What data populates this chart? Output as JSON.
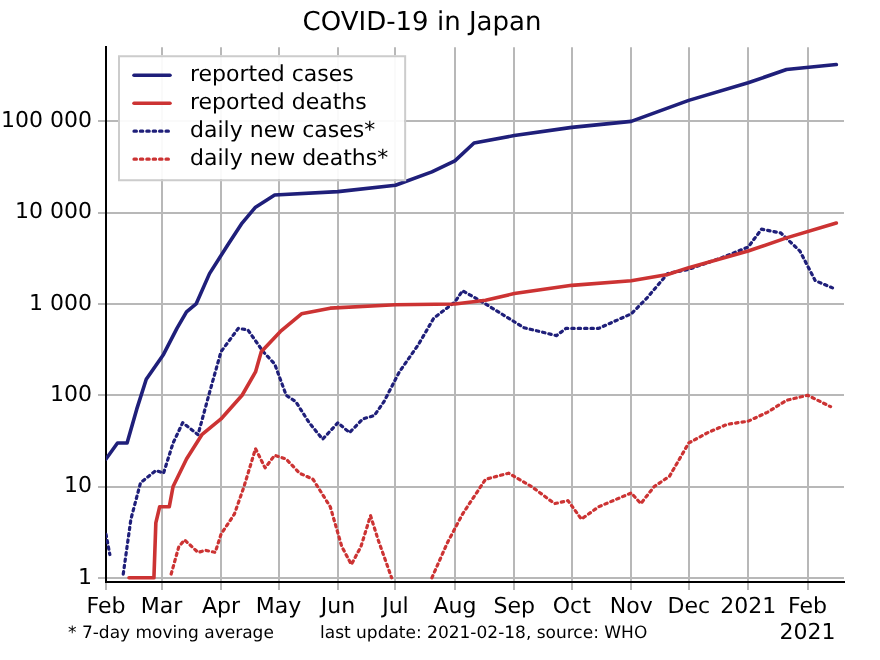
{
  "chart_data": {
    "type": "line",
    "title": "COVID-19 in Japan",
    "log": "y",
    "grid": true,
    "legend": "top left",
    "marker": "none",
    "xlim": [
      "2020-02-01",
      "2021-02-20"
    ],
    "xticks": [
      {
        "value": "2020-02-01",
        "label": "Feb"
      },
      {
        "value": "2020-03-01",
        "label": "Mar"
      },
      {
        "value": "2020-04-01",
        "label": "Apr"
      },
      {
        "value": "2020-05-01",
        "label": "May"
      },
      {
        "value": "2020-06-01",
        "label": "Jun"
      },
      {
        "value": "2020-07-01",
        "label": "Jul"
      },
      {
        "value": "2020-08-01",
        "label": "Aug"
      },
      {
        "value": "2020-09-01",
        "label": "Sep"
      },
      {
        "value": "2020-10-01",
        "label": "Oct"
      },
      {
        "value": "2020-11-01",
        "label": "Nov"
      },
      {
        "value": "2020-12-01",
        "label": "Dec"
      },
      {
        "value": "2021-01-01",
        "label": "2021"
      },
      {
        "value": "2021-02-01",
        "label": "Feb\n2021"
      }
    ],
    "ylim": [
      0.9,
      650000
    ],
    "yticks": [
      1,
      10,
      100,
      {
        "value": 1000,
        "label": "1 000"
      },
      {
        "value": 10000,
        "label": "10 000"
      },
      {
        "value": 100000,
        "label": "100 000"
      }
    ],
    "annotations": [
      "* 7-day moving average",
      "last update: 2021-02-18, source: WHO"
    ],
    "series": [
      {
        "name": "reported cases",
        "color": "#1f1f7a",
        "line_style": "solid",
        "x": [
          "2020-02-01",
          "2020-02-07",
          "2020-02-12",
          "2020-02-17",
          "2020-02-22",
          "2020-03-02",
          "2020-03-09",
          "2020-03-14",
          "2020-03-19",
          "2020-03-26",
          "2020-04-05",
          "2020-04-12",
          "2020-04-19",
          "2020-04-29",
          "2020-06-01",
          "2020-07-01",
          "2020-07-20",
          "2020-08-01",
          "2020-08-11",
          "2020-09-01",
          "2020-10-01",
          "2020-11-01",
          "2020-12-01",
          "2021-01-01",
          "2021-01-21",
          "2021-02-16"
        ],
        "values": [
          20,
          30,
          30,
          70,
          150,
          280,
          540,
          820,
          1000,
          2150,
          4600,
          7700,
          11500,
          15600,
          17000,
          20000,
          28000,
          37000,
          58000,
          70000,
          86000,
          100000,
          170000,
          265000,
          370000,
          420000
        ]
      },
      {
        "name": "reported deaths",
        "color": "#cc3333",
        "line_style": "solid",
        "x": [
          "2020-02-13",
          "2020-02-26",
          "2020-02-27",
          "2020-02-29",
          "2020-03-05",
          "2020-03-07",
          "2020-03-14",
          "2020-03-22",
          "2020-04-01",
          "2020-04-12",
          "2020-04-19",
          "2020-04-22",
          "2020-05-02",
          "2020-05-13",
          "2020-05-28",
          "2020-07-01",
          "2020-08-01",
          "2020-08-17",
          "2020-09-01",
          "2020-10-01",
          "2020-11-01",
          "2020-11-20",
          "2020-12-01",
          "2021-01-01",
          "2021-01-21",
          "2021-02-16"
        ],
        "values": [
          1,
          1,
          4,
          6,
          6,
          10,
          20,
          37,
          55,
          100,
          180,
          300,
          500,
          780,
          900,
          980,
          1000,
          1100,
          1300,
          1600,
          1800,
          2100,
          2500,
          3800,
          5300,
          7700
        ]
      },
      {
        "name": "daily new cases*",
        "color": "#1f1f7a",
        "line_style": "dotted",
        "x": [
          "2020-02-01",
          "2020-02-03",
          "2020-02-06",
          "2020-02-10",
          "2020-02-14",
          "2020-02-19",
          "2020-02-27",
          "2020-03-02",
          "2020-03-07",
          "2020-03-12",
          "2020-03-16",
          "2020-03-20",
          "2020-03-26",
          "2020-04-01",
          "2020-04-10",
          "2020-04-15",
          "2020-04-23",
          "2020-04-29",
          "2020-05-05",
          "2020-05-10",
          "2020-05-17",
          "2020-05-24",
          "2020-06-01",
          "2020-06-07",
          "2020-06-14",
          "2020-06-20",
          "2020-06-25",
          "2020-07-03",
          "2020-07-13",
          "2020-07-21",
          "2020-08-01",
          "2020-08-05",
          "2020-08-17",
          "2020-09-06",
          "2020-09-23",
          "2020-09-28",
          "2020-10-15",
          "2020-11-01",
          "2020-11-09",
          "2020-11-20",
          "2020-12-01",
          "2020-12-18",
          "2021-01-01",
          "2021-01-08",
          "2021-01-18",
          "2021-01-28",
          "2021-02-05",
          "2021-02-14"
        ],
        "values": [
          3,
          1.8,
          null,
          1.1,
          4.4,
          11,
          15,
          14,
          30,
          50,
          43,
          37,
          107,
          300,
          540,
          520,
          300,
          220,
          100,
          85,
          50,
          33,
          50,
          39,
          55,
          60,
          85,
          180,
          360,
          700,
          1050,
          1400,
          1000,
          550,
          450,
          540,
          540,
          780,
          1150,
          2150,
          2400,
          3200,
          4200,
          6600,
          6000,
          3800,
          1800,
          1500
        ]
      },
      {
        "name": "daily new deaths*",
        "color": "#cc3333",
        "line_style": "dotted",
        "x": [
          "2020-03-06",
          "2020-03-10",
          "2020-03-13",
          "2020-03-20",
          "2020-03-24",
          "2020-03-29",
          "2020-04-01",
          "2020-04-08",
          "2020-04-13",
          "2020-04-19",
          "2020-04-24",
          "2020-04-29",
          "2020-05-05",
          "2020-05-12",
          "2020-05-19",
          "2020-05-28",
          "2020-06-03",
          "2020-06-08",
          "2020-06-13",
          "2020-06-18",
          "2020-06-22",
          "2020-06-29",
          "2020-07-08",
          "2020-07-20",
          "2020-07-28",
          "2020-08-05",
          "2020-08-17",
          "2020-08-29",
          "2020-09-10",
          "2020-09-22",
          "2020-09-29",
          "2020-10-06",
          "2020-10-15",
          "2020-11-01",
          "2020-11-06",
          "2020-11-13",
          "2020-11-21",
          "2020-12-01",
          "2020-12-11",
          "2020-12-21",
          "2021-01-01",
          "2021-01-11",
          "2021-01-21",
          "2021-02-01",
          "2021-02-13"
        ],
        "values": [
          1.1,
          2.2,
          2.6,
          1.9,
          2,
          1.9,
          3,
          5,
          10,
          26,
          16,
          22,
          20,
          14,
          12,
          6,
          2.2,
          1.4,
          2.2,
          4.8,
          2.6,
          1,
          null,
          1,
          2.4,
          5,
          12,
          14,
          10,
          6.5,
          7,
          4.4,
          6,
          8.5,
          6.5,
          10,
          13,
          30,
          39,
          48,
          52,
          65,
          88,
          100,
          75
        ]
      }
    ]
  }
}
